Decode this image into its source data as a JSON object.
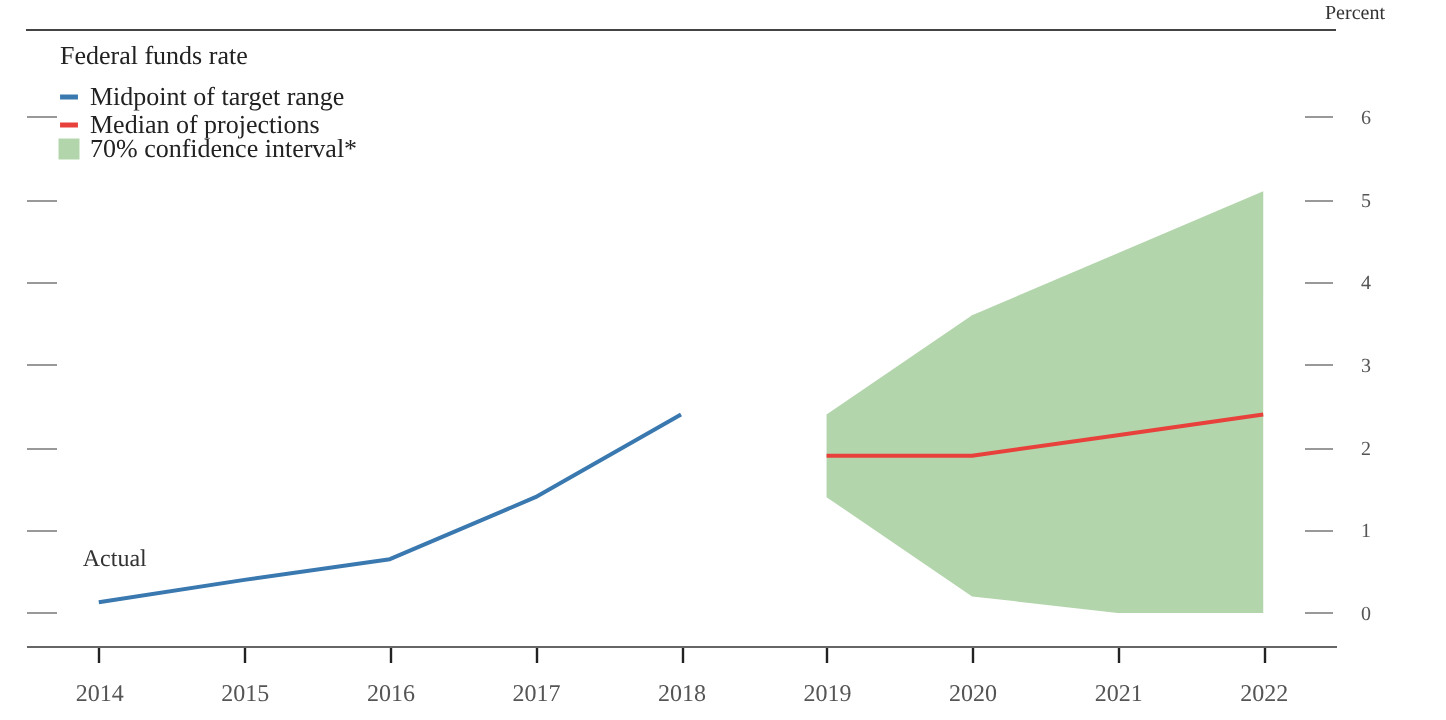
{
  "chart_data": {
    "type": "line",
    "title": "Federal funds rate",
    "ylabel": "Percent",
    "categories": [
      "2014",
      "2015",
      "2016",
      "2017",
      "2018",
      "2019",
      "2020",
      "2021",
      "2022"
    ],
    "series": [
      {
        "name": "Midpoint of target range",
        "color": "#3a78b0",
        "values": [
          0.13,
          0.4,
          0.65,
          1.4,
          2.4,
          null,
          null,
          null,
          null
        ]
      },
      {
        "name": "Median of projections",
        "color": "#e8413c",
        "values": [
          null,
          null,
          null,
          null,
          null,
          1.9,
          1.9,
          2.15,
          2.4
        ],
        "lower": [
          null,
          null,
          null,
          null,
          null,
          1.4,
          0.2,
          0,
          0
        ],
        "upper": [
          null,
          null,
          null,
          null,
          null,
          2.4,
          3.6,
          4.35,
          5.1
        ]
      },
      {
        "name": "70% confidence interval*",
        "type": "area",
        "color": "#b3d5ac",
        "values": [
          null,
          null,
          null,
          null,
          null,
          null,
          null,
          null,
          null
        ]
      }
    ],
    "ylim": [
      -0.4,
      7.05
    ],
    "yticks": [
      0,
      1,
      2,
      3,
      4,
      5,
      6
    ],
    "grid": false,
    "legend": "top left",
    "annotations": [
      "Actual"
    ]
  }
}
